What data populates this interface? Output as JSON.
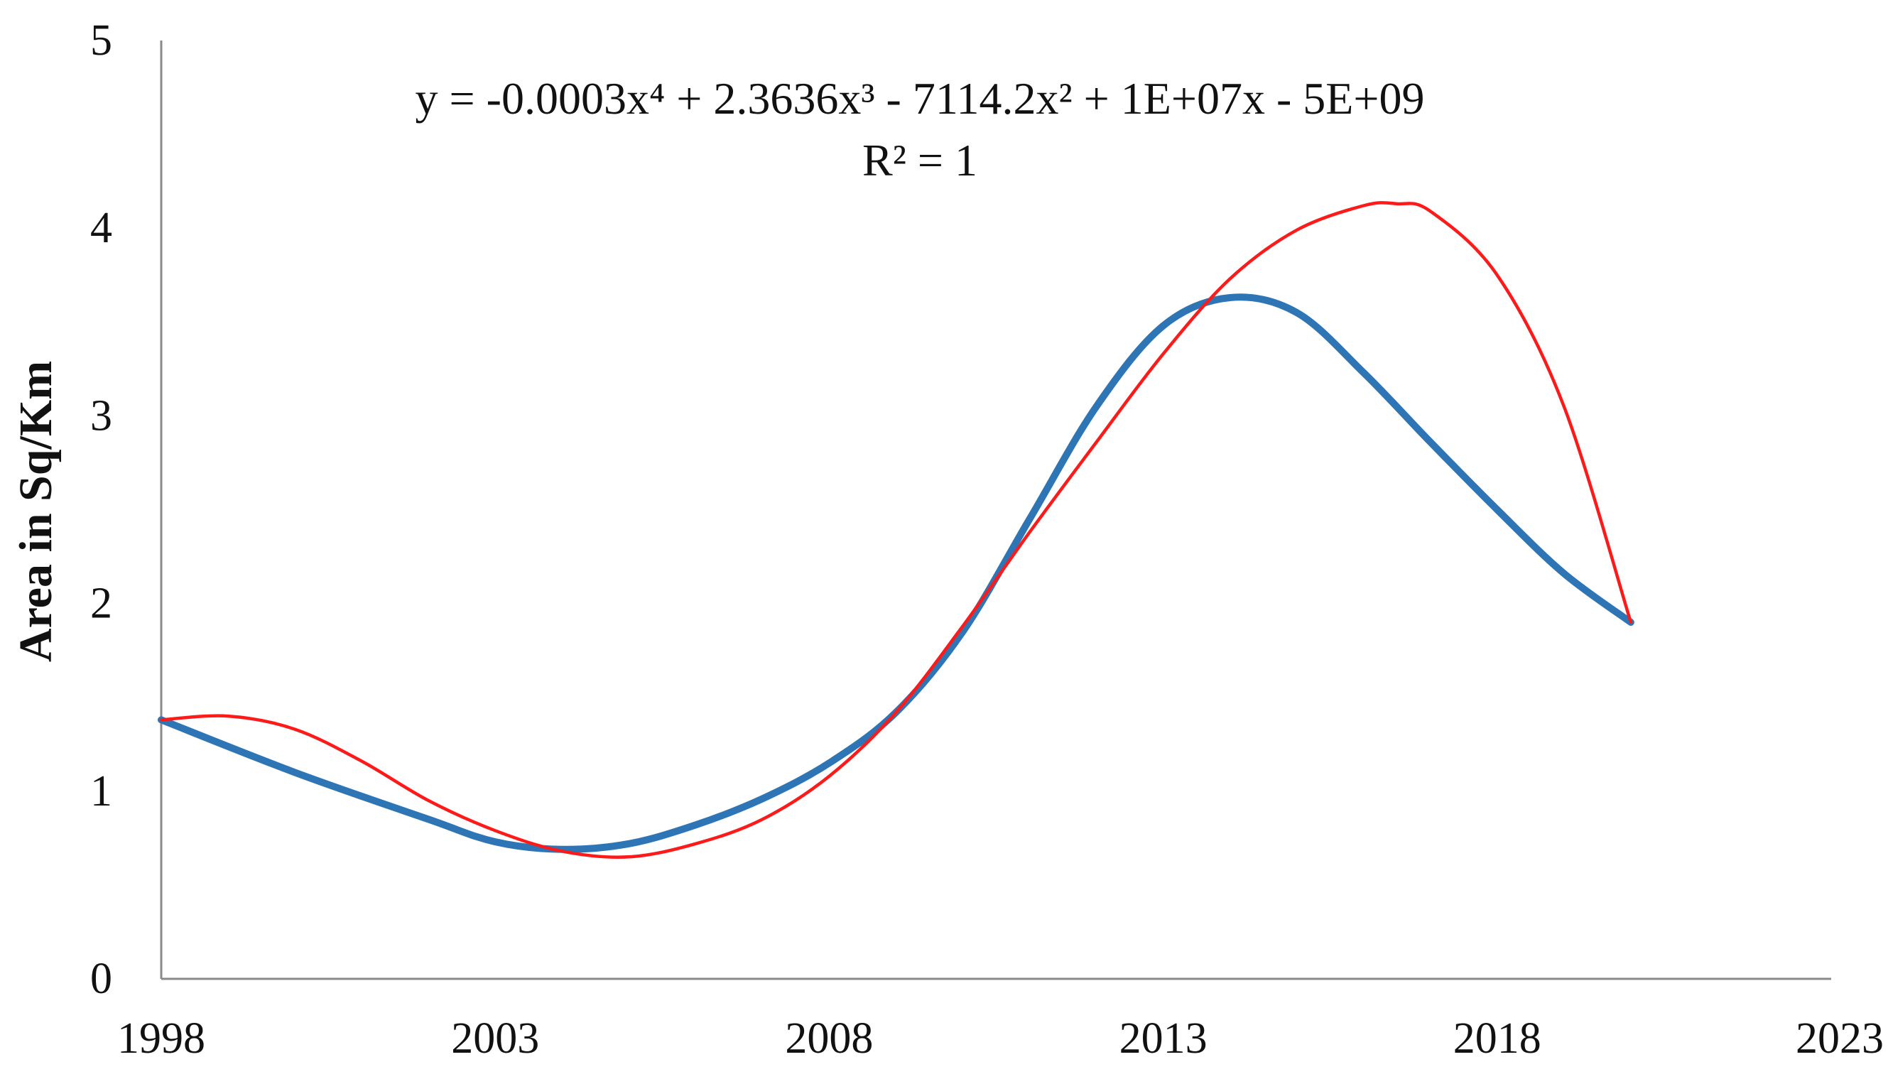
{
  "chart_data": {
    "type": "line",
    "title": "",
    "xlabel": "",
    "ylabel": "Area in Sq/Km",
    "xlim": [
      1998,
      2023
    ],
    "ylim": [
      0,
      5
    ],
    "xticks": [
      "1998",
      "2003",
      "2008",
      "2013",
      "2018",
      "2023"
    ],
    "yticks": [
      "0",
      "1",
      "2",
      "3",
      "4",
      "5"
    ],
    "grid": false,
    "legend": "none",
    "annotations": [
      {
        "type": "equation",
        "text": "y = -0.0003x⁴ + 2.3636x³ - 7114.2x² + 1E+07x - 5E+09"
      },
      {
        "type": "r-squared",
        "text": "R² = 1"
      }
    ],
    "series": [
      {
        "color": "#2e75b6",
        "role": "data",
        "x": [
          1998,
          2000,
          2002,
          2003,
          2004,
          2005,
          2006,
          2007,
          2008,
          2009,
          2010,
          2011,
          2012,
          2013,
          2014,
          2015,
          2016,
          2017,
          2018,
          2019,
          2020
        ],
        "y": [
          1.38,
          1.1,
          0.85,
          0.73,
          0.69,
          0.72,
          0.82,
          0.96,
          1.15,
          1.42,
          1.85,
          2.45,
          3.05,
          3.48,
          3.63,
          3.55,
          3.23,
          2.86,
          2.5,
          2.16,
          1.9
        ]
      },
      {
        "color": "#ff1a1a",
        "role": "trendline",
        "x": [
          1998,
          1999,
          2000,
          2001,
          2002,
          2003,
          2004,
          2005,
          2006,
          2007,
          2008,
          2009,
          2010,
          2011,
          2012,
          2013,
          2014,
          2015,
          2016,
          2016.5,
          2017,
          2018,
          2019,
          2020
        ],
        "y": [
          1.38,
          1.4,
          1.33,
          1.16,
          0.95,
          0.79,
          0.68,
          0.65,
          0.72,
          0.85,
          1.08,
          1.42,
          1.88,
          2.38,
          2.86,
          3.33,
          3.73,
          3.99,
          4.12,
          4.13,
          4.09,
          3.75,
          3.05,
          1.9
        ]
      }
    ]
  }
}
